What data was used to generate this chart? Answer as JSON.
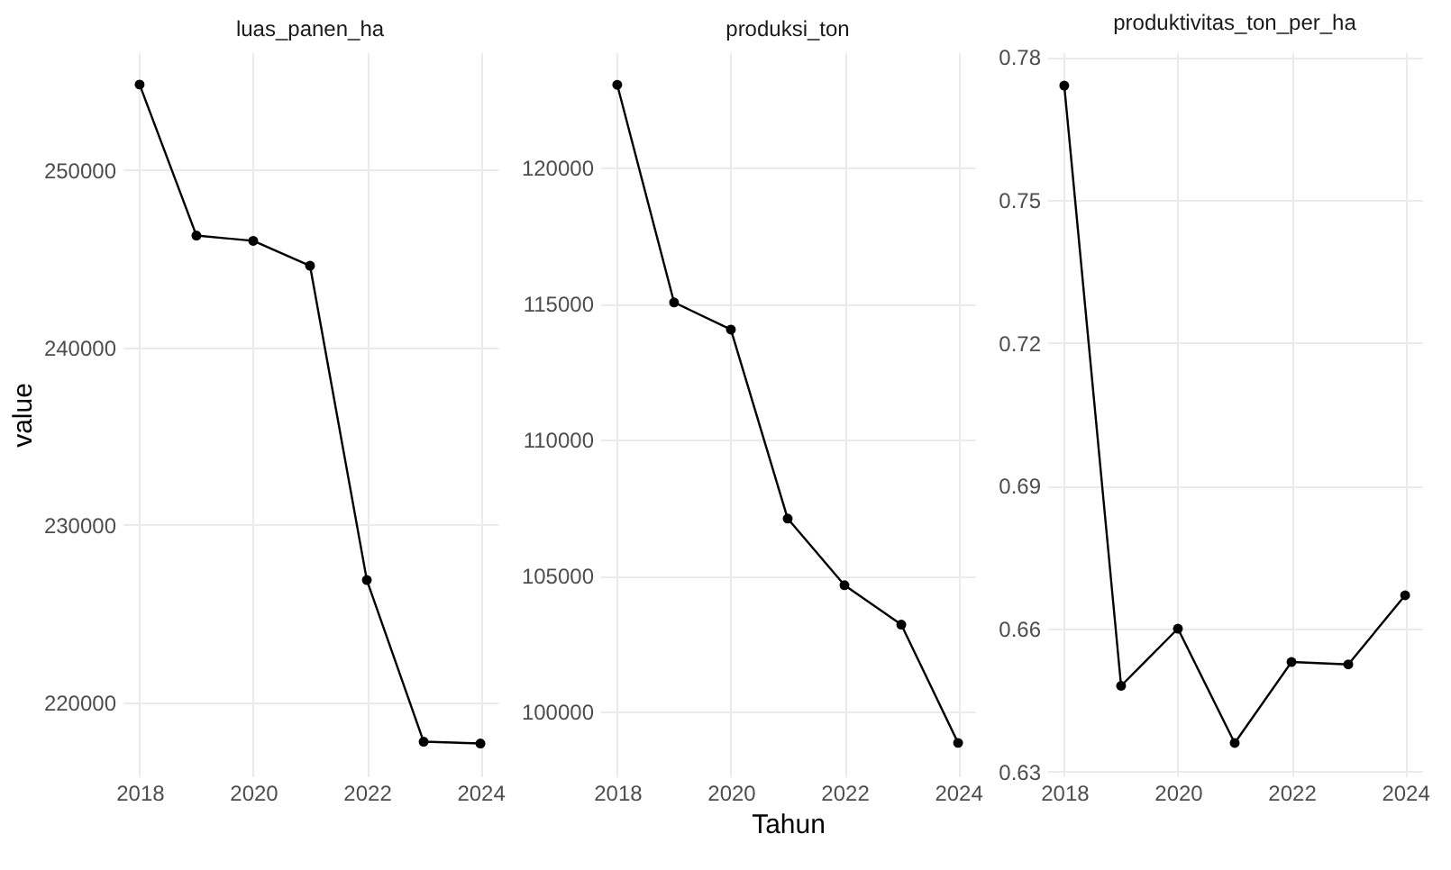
{
  "chart_data": [
    {
      "type": "line",
      "title": "luas_panen_ha",
      "ylabel": "value",
      "x": [
        2018,
        2019,
        2020,
        2021,
        2022,
        2023,
        2024
      ],
      "series": [
        {
          "color": "#000000",
          "values": [
            254800,
            246300,
            246000,
            244600,
            226900,
            217800,
            217700
          ]
        }
      ],
      "xlim": [
        2017.7,
        2024.3
      ],
      "xticks": [
        2018,
        2020,
        2022,
        2024
      ],
      "ylim": [
        215850,
        256620
      ],
      "yticks": [
        220000,
        230000,
        240000,
        250000
      ],
      "grid": true,
      "marker": "circle"
    },
    {
      "type": "line",
      "title": "produksi_ton",
      "xlabel": "Tahun",
      "x": [
        2018,
        2019,
        2020,
        2021,
        2022,
        2023,
        2024
      ],
      "series": [
        {
          "color": "#000000",
          "values": [
            123050,
            115050,
            114050,
            107100,
            104650,
            103200,
            98850
          ]
        }
      ],
      "xlim": [
        2017.7,
        2024.3
      ],
      "xticks": [
        2018,
        2020,
        2022,
        2024
      ],
      "ylim": [
        97620,
        124250
      ],
      "yticks": [
        100000,
        105000,
        110000,
        115000,
        120000
      ],
      "grid": true,
      "marker": "circle"
    },
    {
      "type": "line",
      "title": "produktivitas_ton_per_ha",
      "x": [
        2018,
        2019,
        2020,
        2021,
        2022,
        2023,
        2024
      ],
      "series": [
        {
          "color": "#000000",
          "values": [
            0.774,
            0.648,
            0.66,
            0.636,
            0.653,
            0.6525,
            0.667
          ]
        }
      ],
      "xlim": [
        2017.7,
        2024.3
      ],
      "xticks": [
        2018,
        2020,
        2022,
        2024
      ],
      "ylim": [
        0.629,
        0.781
      ],
      "yticks": [
        0.63,
        0.66,
        0.69,
        0.72,
        0.75,
        0.78
      ],
      "grid": true,
      "marker": "circle"
    }
  ]
}
